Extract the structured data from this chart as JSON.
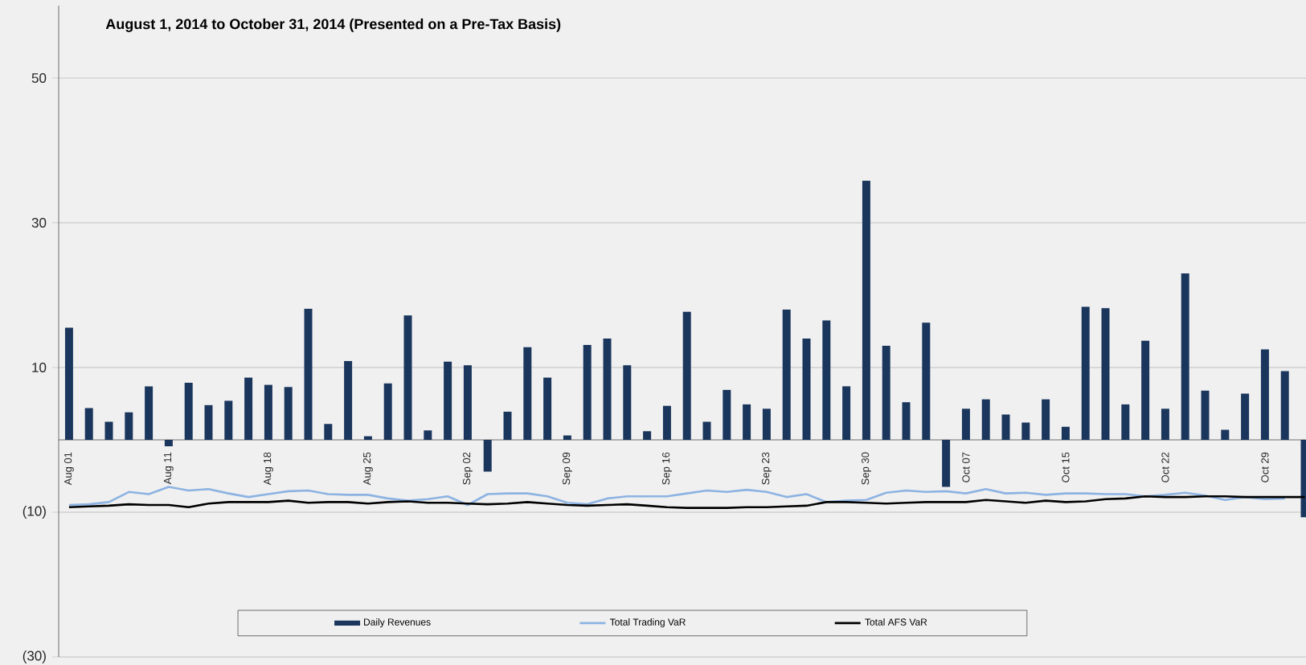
{
  "chart_data": {
    "type": "bar",
    "title": "August 1, 2014 to October 31, 2014 (Presented on a Pre-Tax Basis)",
    "categories": [
      "Aug 01",
      null,
      null,
      null,
      null,
      "Aug 11",
      null,
      null,
      null,
      null,
      "Aug 18",
      null,
      null,
      null,
      null,
      "Aug 25",
      null,
      null,
      null,
      null,
      "Sep 02",
      null,
      null,
      null,
      null,
      "Sep 09",
      null,
      null,
      null,
      null,
      "Sep 16",
      null,
      null,
      null,
      null,
      "Sep 23",
      null,
      null,
      null,
      null,
      "Sep 30",
      null,
      null,
      null,
      null,
      "Oct 07",
      null,
      null,
      null,
      null,
      "Oct 15",
      null,
      null,
      null,
      null,
      "Oct 22",
      null,
      null,
      null,
      null,
      "Oct 29",
      null,
      null
    ],
    "series": [
      {
        "name": "Daily Revenues",
        "color": "#1b365d",
        "values": [
          15.5,
          4.4,
          2.5,
          3.8,
          7.4,
          -0.9,
          7.9,
          4.8,
          5.4,
          8.6,
          7.6,
          7.3,
          18.1,
          2.2,
          10.9,
          0.5,
          7.8,
          17.2,
          1.3,
          10.8,
          10.3,
          -4.4,
          3.9,
          12.8,
          8.6,
          0.6,
          13.1,
          14.0,
          10.3,
          1.2,
          4.7,
          17.7,
          2.5,
          6.9,
          4.9,
          4.3,
          18.0,
          14.0,
          16.5,
          7.4,
          35.8,
          13.0,
          5.2,
          16.2,
          -6.5,
          4.3,
          5.6,
          3.5,
          2.4,
          5.6,
          1.8,
          18.4,
          18.2,
          4.9,
          13.7,
          4.3,
          23.0,
          6.8,
          1.4,
          6.4,
          12.5,
          9.5,
          -10.7
        ]
      },
      {
        "name": "Total Trading VaR",
        "type": "line",
        "color": "#8db3e2",
        "values": [
          -9.0,
          -8.9,
          -8.6,
          -7.2,
          -7.5,
          -6.5,
          -7.0,
          -6.8,
          -7.4,
          -7.9,
          -7.5,
          -7.1,
          -7.0,
          -7.5,
          -7.6,
          -7.6,
          -8.1,
          -8.4,
          -8.2,
          -7.8,
          -9.0,
          -7.5,
          -7.4,
          -7.4,
          -7.8,
          -8.7,
          -8.9,
          -8.1,
          -7.8,
          -7.8,
          -7.8,
          -7.4,
          -7.0,
          -7.2,
          -6.9,
          -7.2,
          -7.9,
          -7.5,
          -8.6,
          -8.4,
          -8.3,
          -7.3,
          -7.0,
          -7.2,
          -7.1,
          -7.4,
          -6.8,
          -7.4,
          -7.3,
          -7.6,
          -7.4,
          -7.4,
          -7.5,
          -7.5,
          -7.8,
          -7.6,
          -7.3,
          -7.7,
          -8.3,
          -7.9,
          -8.2,
          -8.1,
          null
        ]
      },
      {
        "name": "Total AFS VaR",
        "type": "line",
        "color": "#000000",
        "values": [
          -9.3,
          -9.2,
          -9.1,
          -8.9,
          -9.0,
          -9.0,
          -9.3,
          -8.8,
          -8.6,
          -8.6,
          -8.6,
          -8.4,
          -8.7,
          -8.6,
          -8.6,
          -8.8,
          -8.6,
          -8.5,
          -8.7,
          -8.7,
          -8.8,
          -8.9,
          -8.8,
          -8.6,
          -8.8,
          -9.0,
          -9.1,
          -9.0,
          -8.9,
          -9.1,
          -9.3,
          -9.4,
          -9.4,
          -9.4,
          -9.3,
          -9.3,
          -9.2,
          -9.1,
          -8.6,
          -8.6,
          -8.7,
          -8.8,
          -8.7,
          -8.6,
          -8.6,
          -8.6,
          -8.3,
          -8.5,
          -8.7,
          -8.4,
          -8.6,
          -8.5,
          -8.2,
          -8.1,
          -7.8,
          -7.9,
          -7.9,
          -7.8,
          -7.8,
          -7.9,
          -7.9,
          -7.9,
          -7.9
        ]
      }
    ],
    "ylim": [
      -30,
      60
    ],
    "yticks": [
      50,
      30,
      10,
      {
        "value": -10,
        "label": "(10)"
      },
      {
        "value": -30,
        "label": "(30)"
      }
    ],
    "grid": "y",
    "legend": "bottom"
  }
}
